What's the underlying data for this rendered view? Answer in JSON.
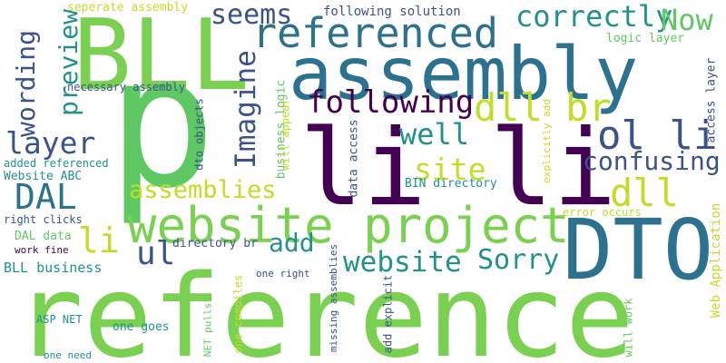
{
  "words": [
    {
      "id": "reference",
      "text": "reference",
      "color": "#7ad151"
    },
    {
      "id": "assembly",
      "text": "assembly",
      "color": "#2c728e"
    },
    {
      "id": "bll",
      "text": "BLL",
      "color": "#7ad151"
    },
    {
      "id": "p",
      "text": "p",
      "color": "#5ec962"
    },
    {
      "id": "li-li",
      "text": "li li",
      "color": "#440154"
    },
    {
      "id": "dto",
      "text": "DTO",
      "color": "#2c728e"
    },
    {
      "id": "website-project",
      "text": "website project",
      "color": "#7ad151"
    },
    {
      "id": "referenced",
      "text": "referenced",
      "color": "#2c728e"
    },
    {
      "id": "dal",
      "text": "DAL",
      "color": "#2c728e"
    },
    {
      "id": "imagine",
      "text": "Imagine",
      "color": "#3b528b"
    },
    {
      "id": "following",
      "text": "following",
      "color": "#440154"
    },
    {
      "id": "dll-br",
      "text": "dll br",
      "color": "#bddf26"
    },
    {
      "id": "ol-li",
      "text": "ol li",
      "color": "#3b528b"
    },
    {
      "id": "correctly",
      "text": "correctly",
      "color": "#21918c"
    },
    {
      "id": "now",
      "text": "Now",
      "color": "#5ec962"
    },
    {
      "id": "seems",
      "text": "seems",
      "color": "#3b528b"
    },
    {
      "id": "preview",
      "text": "preview",
      "color": "#21918c"
    },
    {
      "id": "wording",
      "text": "wording",
      "color": "#3b528b"
    },
    {
      "id": "layer",
      "text": "layer",
      "color": "#3b528b"
    },
    {
      "id": "well",
      "text": "well",
      "color": "#21918c"
    },
    {
      "id": "site",
      "text": "site",
      "color": "#bddf26"
    },
    {
      "id": "confusing",
      "text": "confusing",
      "color": "#3b528b"
    },
    {
      "id": "dll",
      "text": "dll",
      "color": "#bddf26"
    },
    {
      "id": "assemblies",
      "text": "assemblies",
      "color": "#bddf26"
    },
    {
      "id": "li",
      "text": "li",
      "color": "#bddf26"
    },
    {
      "id": "ul",
      "text": "ul",
      "color": "#3b528b"
    },
    {
      "id": "add",
      "text": "add",
      "color": "#21918c"
    },
    {
      "id": "website",
      "text": "website",
      "color": "#21918c"
    },
    {
      "id": "sorry",
      "text": "Sorry",
      "color": "#21918c"
    },
    {
      "id": "seperate-assembly",
      "text": "seperate assembly",
      "color": "#bddf26"
    },
    {
      "id": "following-solution",
      "text": "following solution",
      "color": "#3b528b"
    },
    {
      "id": "logic-layer",
      "text": "logic layer",
      "color": "#5ec962"
    },
    {
      "id": "necessary-assembly",
      "text": "necessary assembly",
      "color": "#3b528b"
    },
    {
      "id": "access-layer",
      "text": "access layer",
      "color": "#3b528b"
    },
    {
      "id": "dto-objects",
      "text": "dto objects",
      "color": "#3b528b"
    },
    {
      "id": "business-logic",
      "text": "business logic",
      "color": "#5ec962"
    },
    {
      "id": "will-appear",
      "text": "will appear",
      "color": "#bddf26"
    },
    {
      "id": "data-access",
      "text": "data access",
      "color": "#3b528b"
    },
    {
      "id": "explicitly-add",
      "text": "explicitly add",
      "color": "#bddf26"
    },
    {
      "id": "added-referenced",
      "text": "added referenced",
      "color": "#21918c"
    },
    {
      "id": "website-abc",
      "text": "Website ABC",
      "color": "#21918c"
    },
    {
      "id": "bin-directory",
      "text": "BIN directory",
      "color": "#21918c"
    },
    {
      "id": "error-occurs",
      "text": "error occurs",
      "color": "#bddf26"
    },
    {
      "id": "right-clicks",
      "text": "right clicks",
      "color": "#3b528b"
    },
    {
      "id": "dal-data",
      "text": "DAL data",
      "color": "#5ec962"
    },
    {
      "id": "work-fine",
      "text": "work fine",
      "color": "#440154"
    },
    {
      "id": "directory-br",
      "text": "directory br",
      "color": "#3b528b"
    },
    {
      "id": "bll-business",
      "text": "BLL business",
      "color": "#21918c"
    },
    {
      "id": "one-right",
      "text": "one right",
      "color": "#3b528b"
    },
    {
      "id": "one-goes",
      "text": "one goes",
      "color": "#21918c"
    },
    {
      "id": "asp-net",
      "text": "ASP NET",
      "color": "#21918c"
    },
    {
      "id": "one-compiles",
      "text": "one compiles",
      "color": "#bddf26"
    },
    {
      "id": "net-pulls",
      "text": "NET pulls",
      "color": "#5ec962"
    },
    {
      "id": "missing-assemblies",
      "text": "missing assemblies",
      "color": "#3b528b"
    },
    {
      "id": "add-explicit",
      "text": "add explicit",
      "color": "#3b528b"
    },
    {
      "id": "will-work",
      "text": "will work",
      "color": "#5ec962"
    },
    {
      "id": "web-application",
      "text": "Web Application",
      "color": "#bddf26"
    },
    {
      "id": "one-need",
      "text": "one need",
      "color": "#21918c"
    }
  ]
}
